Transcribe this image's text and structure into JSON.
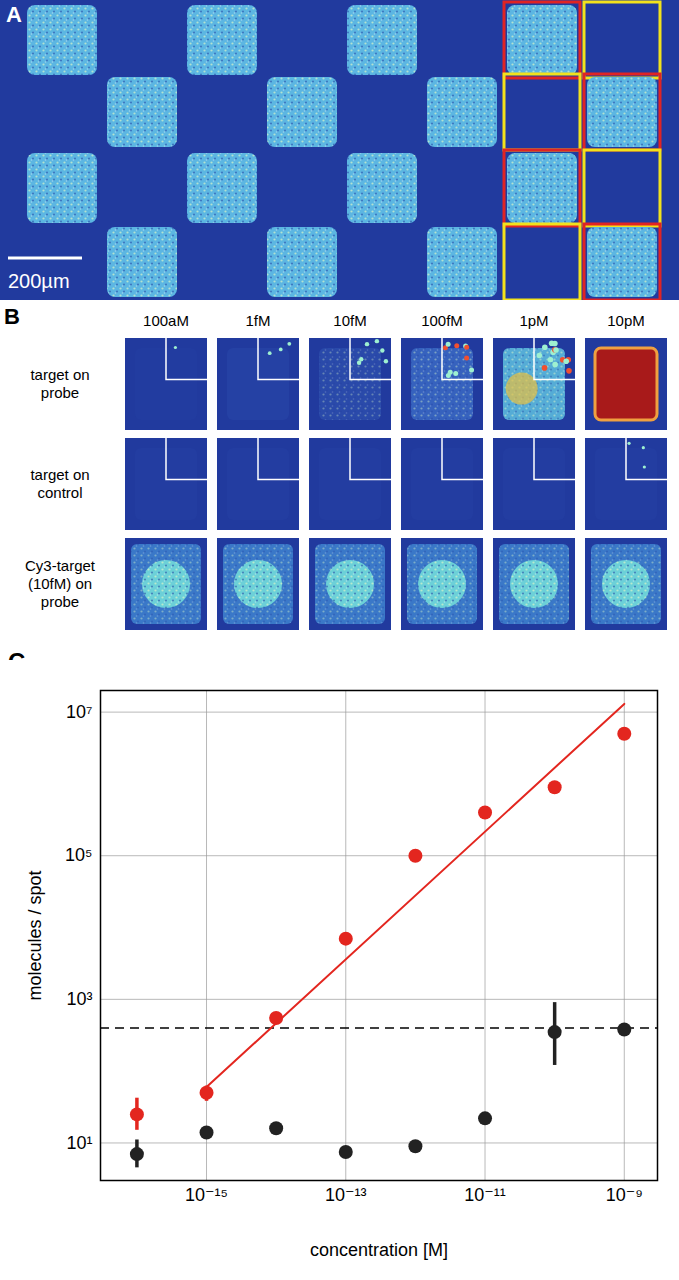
{
  "panel_a": {
    "panel_label": "A",
    "scale_bar": "200µm"
  },
  "panel_b": {
    "panel_label": "B",
    "columns": [
      "100aM",
      "1fM",
      "10fM",
      "100fM",
      "1pM",
      "10pM"
    ],
    "rows": [
      "target on probe",
      "target on control",
      "Cy3-target (10fM) on probe"
    ]
  },
  "chart_data": {
    "panel_label": "C",
    "type": "scatter",
    "log": true,
    "grid": true,
    "x_label": "concentration [M]",
    "y_label": "molecules / spot",
    "xlim": [
      3e-17,
      3e-09
    ],
    "ylim": [
      3,
      20000000
    ],
    "xticks": [
      {
        "value": 1e-15,
        "label": "10⁻¹⁵"
      },
      {
        "value": 1e-13,
        "label": "10⁻¹³"
      },
      {
        "value": 1e-11,
        "label": "10⁻¹¹"
      },
      {
        "value": 1e-09,
        "label": "10⁻⁹"
      }
    ],
    "yticks": [
      {
        "value": 10,
        "label": "10¹"
      },
      {
        "value": 1000,
        "label": "10³"
      },
      {
        "value": 100000,
        "label": "10⁵"
      },
      {
        "value": 10000000,
        "label": "10⁷"
      }
    ],
    "x": [
      1e-16,
      1e-15,
      1e-14,
      1e-13,
      1e-12,
      1e-11,
      1e-10,
      1e-09
    ],
    "series": [
      {
        "type": "line",
        "color": "#e3261f",
        "line_style": "solid",
        "x": [
          1e-15,
          1e-09
        ],
        "values": [
          60,
          13000000
        ]
      },
      {
        "type": "scatter",
        "color": "#e3261f",
        "marker": "circle",
        "values": [
          25,
          50,
          550,
          7000,
          100000,
          400000,
          900000,
          5000000
        ],
        "error_bars": [
          [
            15,
            42
          ],
          [
            38,
            62
          ],
          null,
          null,
          null,
          null,
          null,
          null
        ]
      },
      {
        "type": "scatter",
        "color": "#222222",
        "marker": "circle",
        "values": [
          7,
          14,
          16,
          7.5,
          9,
          22,
          350,
          380
        ],
        "error_bars": [
          [
            4.5,
            11
          ],
          null,
          null,
          null,
          null,
          null,
          [
            120,
            900
          ],
          null
        ]
      }
    ],
    "reference_lines": [
      {
        "y": 400,
        "color": "#000000",
        "line_style": "dashed"
      }
    ]
  }
}
